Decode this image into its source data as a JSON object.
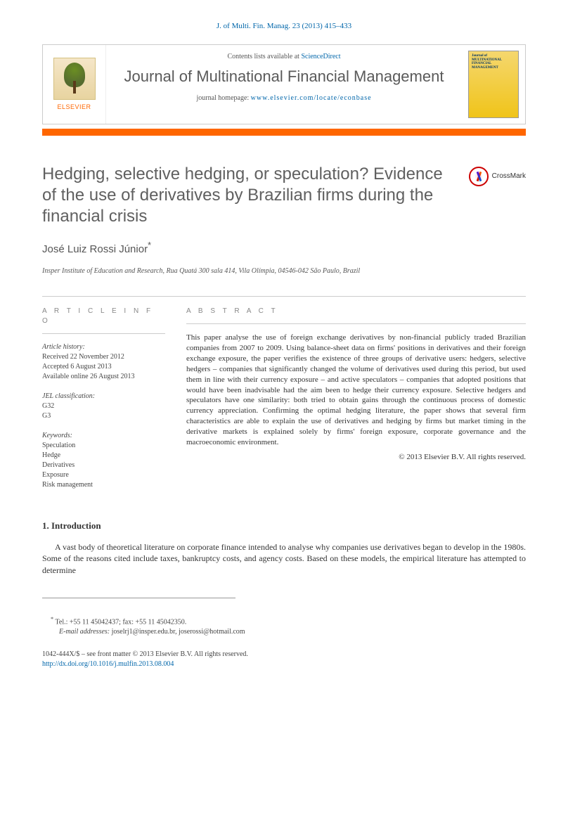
{
  "header": {
    "citation": "J. of Multi. Fin. Manag. 23 (2013) 415–433",
    "contents_prefix": "Contents lists available at ",
    "contents_link": "ScienceDirect",
    "journal_name": "Journal of Multinational Financial Management",
    "homepage_prefix": "journal homepage: ",
    "homepage_url": "www.elsevier.com/locate/econbase",
    "elsevier": "ELSEVIER",
    "cover_text": "Journal of MULTINATIONAL FINANCIAL MANAGEMENT"
  },
  "crossmark": "CrossMark",
  "article": {
    "title": "Hedging, selective hedging, or speculation? Evidence of the use of derivatives by Brazilian firms during the financial crisis",
    "author": "José Luiz Rossi Júnior",
    "author_marker": "*",
    "affiliation": "Insper Institute of Education and Research, Rua Quatá 300 sala 414, Vila Olímpia, 04546-042 São Paulo, Brazil"
  },
  "info": {
    "heading": "A R T I C L E   I N F O",
    "history_label": "Article history:",
    "history": [
      "Received 22 November 2012",
      "Accepted 6 August 2013",
      "Available online 26 August 2013"
    ],
    "jel_label": "JEL classification:",
    "jel": [
      "G32",
      "G3"
    ],
    "keywords_label": "Keywords:",
    "keywords": [
      "Speculation",
      "Hedge",
      "Derivatives",
      "Exposure",
      "Risk management"
    ]
  },
  "abstract": {
    "heading": "A B S T R A C T",
    "text": "This paper analyse the use of foreign exchange derivatives by non-financial publicly traded Brazilian companies from 2007 to 2009. Using balance-sheet data on firms' positions in derivatives and their foreign exchange exposure, the paper verifies the existence of three groups of derivative users: hedgers, selective hedgers – companies that significantly changed the volume of derivatives used during this period, but used them in line with their currency exposure – and active speculators – companies that adopted positions that would have been inadvisable had the aim been to hedge their currency exposure. Selective hedgers and speculators have one similarity: both tried to obtain gains through the continuous process of domestic currency appreciation. Confirming the optimal hedging literature, the paper shows that several firm characteristics are able to explain the use of derivatives and hedging by firms but market timing in the derivative markets is explained solely by firms' foreign exposure, corporate governance and the macroeconomic environment.",
    "copyright": "© 2013 Elsevier B.V. All rights reserved."
  },
  "section": {
    "heading": "1.  Introduction",
    "body": "A vast body of theoretical literature on corporate finance intended to analyse why companies use derivatives began to develop in the 1980s. Some of the reasons cited include taxes, bankruptcy costs, and agency costs. Based on these models, the empirical literature has attempted to determine"
  },
  "footnotes": {
    "contact": "Tel.: +55 11 45042437; fax: +55 11 45042350.",
    "email_label": "E-mail addresses: ",
    "email1": "joselrj1@insper.edu.br",
    "email_sep": ", ",
    "email2": "joserossi@hotmail.com"
  },
  "bottom": {
    "line1": "1042-444X/$ – see front matter © 2013 Elsevier B.V. All rights reserved.",
    "doi": "http://dx.doi.org/10.1016/j.mulfin.2013.08.004"
  }
}
